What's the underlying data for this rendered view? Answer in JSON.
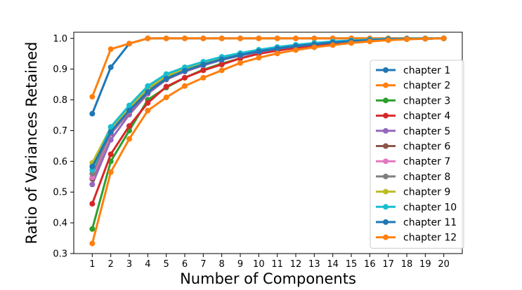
{
  "chart_data": {
    "type": "line",
    "title": "",
    "xlabel": "Number of Components",
    "ylabel": "Ratio of Variances Retained",
    "x": [
      1,
      2,
      3,
      4,
      5,
      6,
      7,
      8,
      9,
      10,
      11,
      12,
      13,
      14,
      15,
      16,
      17,
      18,
      19,
      20
    ],
    "xlim": [
      0.0,
      21.0
    ],
    "ylim": [
      0.3,
      1.02
    ],
    "yticks": [
      0.3,
      0.4,
      0.5,
      0.6,
      0.7,
      0.8,
      0.9,
      1.0
    ],
    "ytick_labels": [
      "0.3",
      "0.4",
      "0.5",
      "0.6",
      "0.7",
      "0.8",
      "0.9",
      "1.0"
    ],
    "xtick_labels": [
      "1",
      "2",
      "3",
      "4",
      "5",
      "6",
      "7",
      "8",
      "9",
      "10",
      "11",
      "12",
      "13",
      "14",
      "15",
      "16",
      "17",
      "18",
      "19",
      "20"
    ],
    "grid": false,
    "legend_position": "right",
    "series": [
      {
        "name": "chapter 1",
        "color": "#1f77b4",
        "values": [
          0.755,
          0.906,
          0.983,
          1.0,
          1.0,
          1.0,
          1.0,
          1.0,
          1.0,
          1.0,
          1.0,
          1.0,
          1.0,
          1.0,
          1.0,
          1.0,
          1.0,
          1.0,
          1.0,
          1.0
        ]
      },
      {
        "name": "chapter 2",
        "color": "#ff7f0e",
        "values": [
          0.81,
          0.965,
          0.983,
          1.0,
          1.0,
          1.0,
          1.0,
          1.0,
          1.0,
          1.0,
          1.0,
          1.0,
          1.0,
          1.0,
          1.0,
          1.0,
          1.0,
          1.0,
          1.0,
          1.0
        ]
      },
      {
        "name": "chapter 3",
        "color": "#2ca02c",
        "values": [
          0.38,
          0.6,
          0.7,
          0.8,
          0.84,
          0.872,
          0.898,
          0.918,
          0.935,
          0.95,
          0.962,
          0.97,
          0.978,
          0.985,
          0.99,
          0.993,
          0.996,
          0.998,
          0.999,
          1.0
        ]
      },
      {
        "name": "chapter 4",
        "color": "#d62728",
        "values": [
          0.462,
          0.623,
          0.715,
          0.79,
          0.843,
          0.872,
          0.896,
          0.915,
          0.935,
          0.95,
          0.96,
          0.969,
          0.977,
          0.984,
          0.989,
          0.993,
          0.996,
          0.998,
          0.999,
          1.0
        ]
      },
      {
        "name": "chapter 5",
        "color": "#9467bd",
        "values": [
          0.525,
          0.67,
          0.752,
          0.82,
          0.866,
          0.892,
          0.912,
          0.93,
          0.944,
          0.956,
          0.966,
          0.974,
          0.981,
          0.987,
          0.991,
          0.994,
          0.997,
          0.998,
          0.999,
          1.0
        ]
      },
      {
        "name": "chapter 6",
        "color": "#8c564b",
        "values": [
          0.543,
          0.69,
          0.76,
          0.826,
          0.868,
          0.895,
          0.915,
          0.932,
          0.946,
          0.958,
          0.967,
          0.975,
          0.982,
          0.987,
          0.991,
          0.994,
          0.997,
          0.998,
          0.999,
          1.0
        ]
      },
      {
        "name": "chapter 7",
        "color": "#e377c2",
        "values": [
          0.548,
          0.693,
          0.762,
          0.828,
          0.87,
          0.896,
          0.916,
          0.933,
          0.947,
          0.959,
          0.968,
          0.976,
          0.982,
          0.988,
          0.992,
          0.995,
          0.997,
          0.998,
          0.999,
          1.0
        ]
      },
      {
        "name": "chapter 8",
        "color": "#7f7f7f",
        "values": [
          0.56,
          0.698,
          0.768,
          0.832,
          0.873,
          0.899,
          0.918,
          0.935,
          0.948,
          0.96,
          0.969,
          0.976,
          0.983,
          0.988,
          0.992,
          0.995,
          0.997,
          0.998,
          0.999,
          1.0
        ]
      },
      {
        "name": "chapter 9",
        "color": "#bcbd22",
        "values": [
          0.595,
          0.71,
          0.775,
          0.838,
          0.878,
          0.902,
          0.921,
          0.937,
          0.95,
          0.961,
          0.97,
          0.977,
          0.983,
          0.988,
          0.992,
          0.995,
          0.997,
          0.998,
          0.999,
          1.0
        ]
      },
      {
        "name": "chapter 10",
        "color": "#17becf",
        "values": [
          0.572,
          0.712,
          0.782,
          0.845,
          0.884,
          0.906,
          0.924,
          0.94,
          0.952,
          0.963,
          0.972,
          0.979,
          0.985,
          0.99,
          0.993,
          0.996,
          0.998,
          0.999,
          1.0,
          1.0
        ]
      },
      {
        "name": "chapter 11",
        "color": "#1f77b4",
        "values": [
          0.583,
          0.695,
          0.765,
          0.826,
          0.869,
          0.895,
          0.915,
          0.932,
          0.946,
          0.958,
          0.967,
          0.975,
          0.981,
          0.987,
          0.991,
          0.994,
          0.997,
          0.998,
          0.999,
          1.0
        ]
      },
      {
        "name": "chapter 12",
        "color": "#ff7f0e",
        "values": [
          0.333,
          0.565,
          0.673,
          0.765,
          0.808,
          0.845,
          0.872,
          0.896,
          0.92,
          0.937,
          0.951,
          0.962,
          0.971,
          0.978,
          0.985,
          0.99,
          0.994,
          0.997,
          0.999,
          1.0
        ]
      }
    ]
  }
}
